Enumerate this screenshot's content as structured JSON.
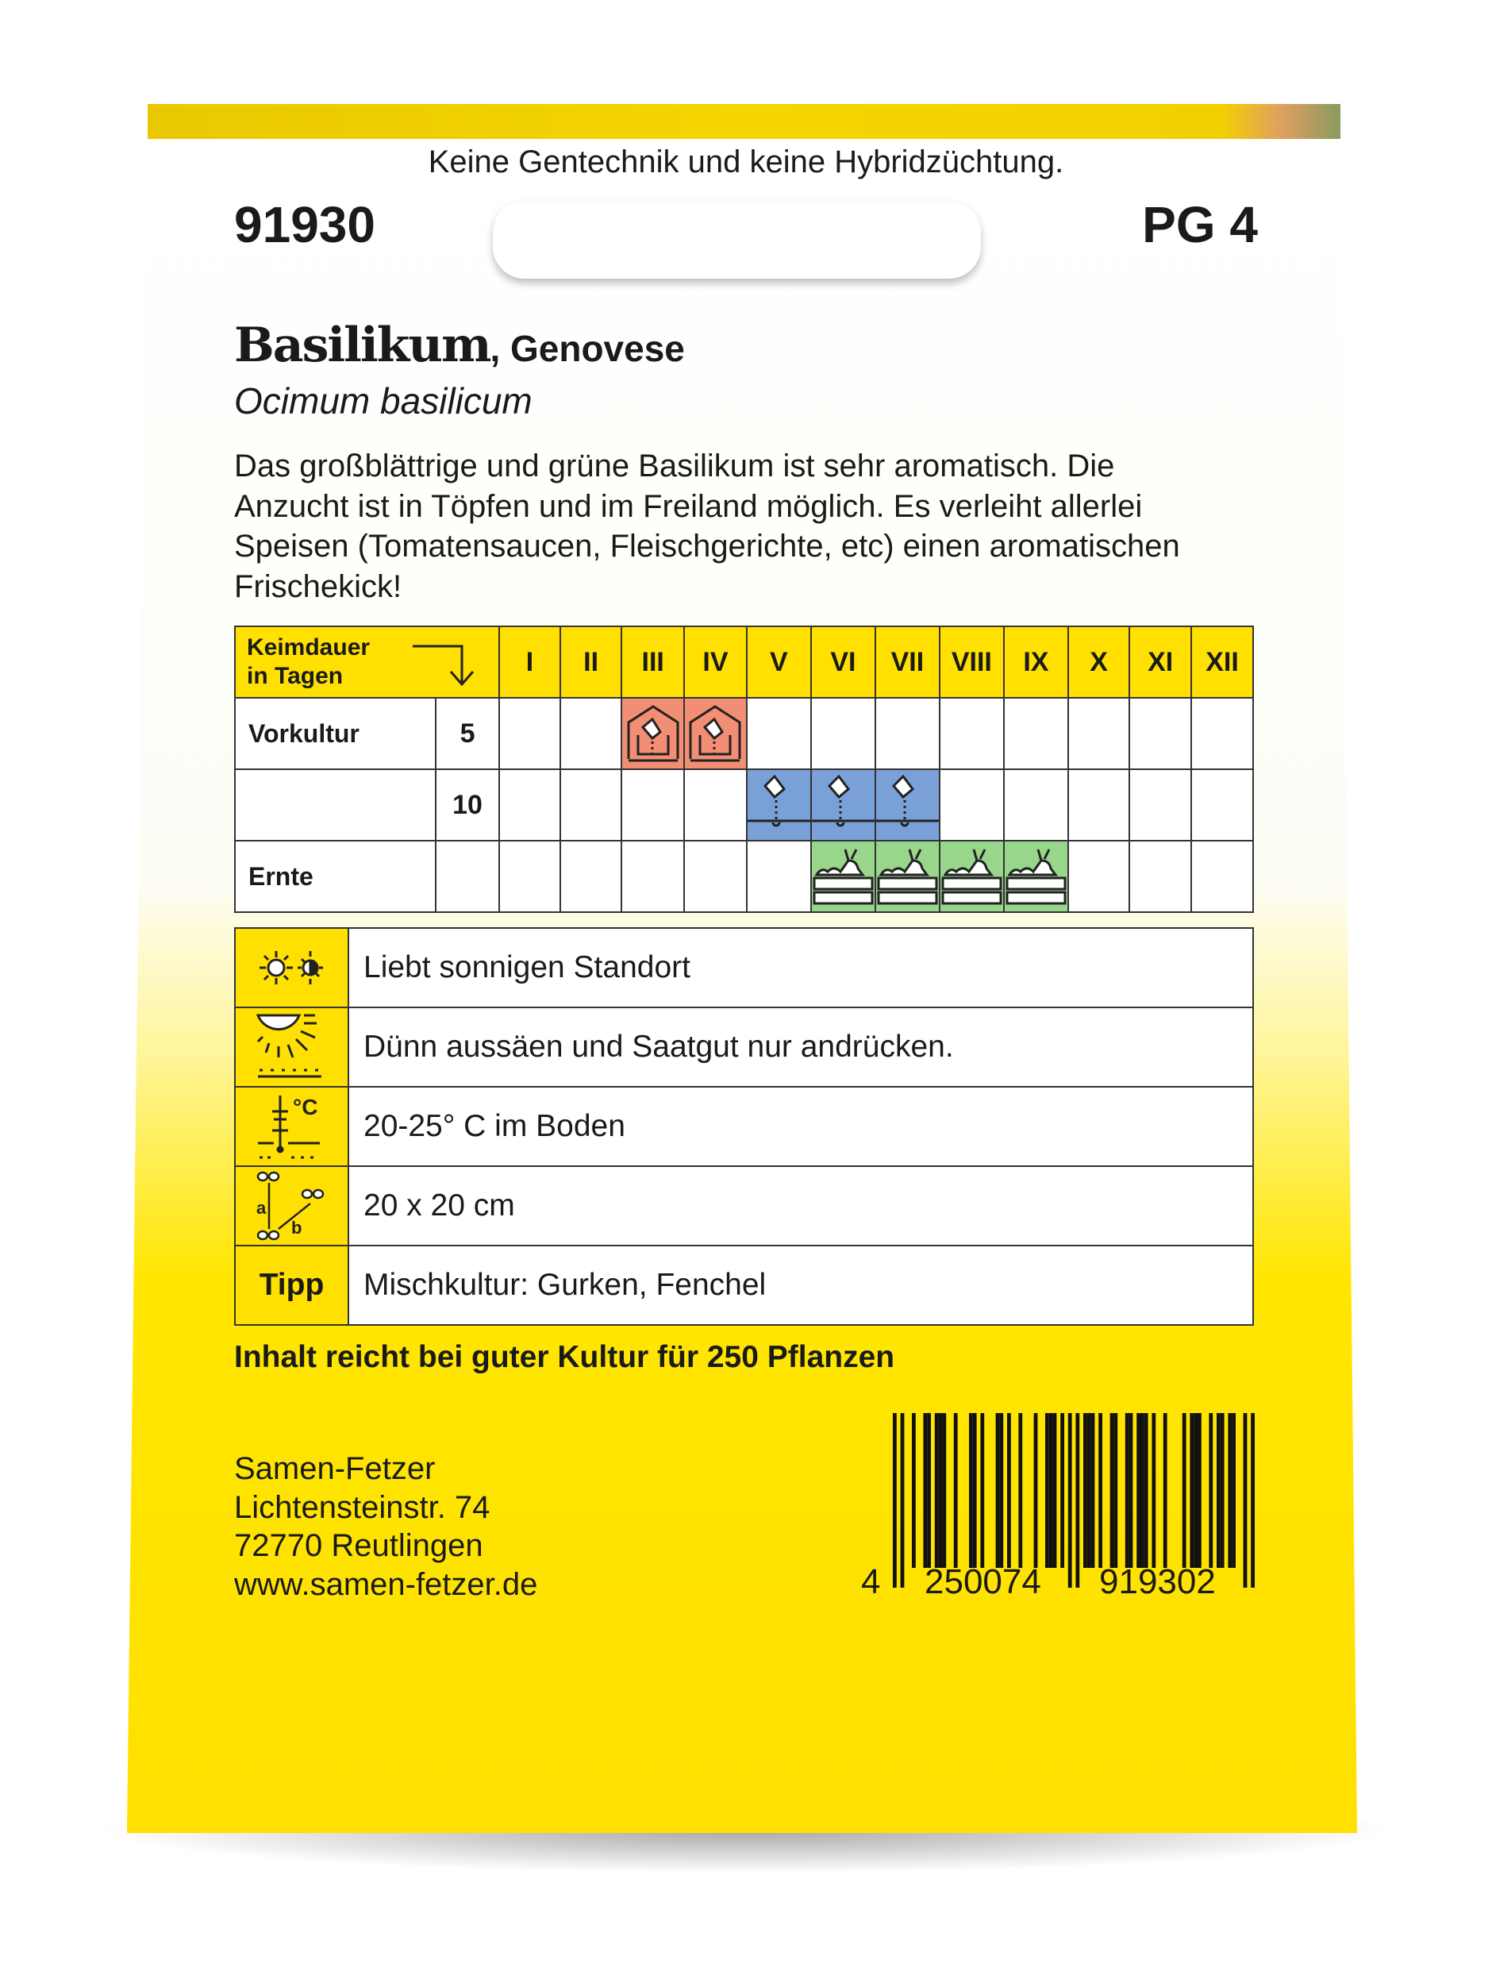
{
  "header": {
    "claim": "Keine Gentechnik und keine Hybridzüchtung.",
    "article_number": "91930",
    "price_group": "PG 4"
  },
  "product": {
    "name": "Basilikum",
    "variety": ", Genovese",
    "latin": "Ocimum basilicum",
    "description": [
      "Das großblättrige und grüne Basilikum ist sehr aromatisch. Die",
      "Anzucht ist in Töpfen und im Freiland möglich. Es verleiht allerlei",
      "Speisen (Tomatensaucen, Fleischgerichte, etc) einen aromatischen",
      "Frischekick!"
    ]
  },
  "schedule": {
    "header_label_1": "Keimdauer",
    "header_label_2": "in Tagen",
    "months": [
      "I",
      "II",
      "III",
      "IV",
      "V",
      "VI",
      "VII",
      "VIII",
      "IX",
      "X",
      "XI",
      "XII"
    ],
    "rows": [
      {
        "label": "Vorkultur",
        "days": "5",
        "icon": "greenhouse-sowing-icon",
        "color": "#f28e73",
        "months": [
          3,
          4
        ]
      },
      {
        "label": "",
        "days": "10",
        "icon": "direct-sowing-icon",
        "color": "#7aa0d8",
        "months": [
          5,
          6,
          7
        ]
      },
      {
        "label": "Ernte",
        "days": "",
        "icon": "harvest-crate-icon",
        "color": "#98d68c",
        "months": [
          6,
          7,
          8,
          9
        ]
      }
    ]
  },
  "info": [
    {
      "icon": "sun-halfshade-icon",
      "text": "Liebt sonnigen Standort"
    },
    {
      "icon": "light-germinator-icon",
      "text": "Dünn aussäen und Saatgut nur andrücken."
    },
    {
      "icon": "soil-thermometer-icon",
      "text": "20-25° C im Boden"
    },
    {
      "icon": "plant-spacing-icon",
      "text": "20 x 20 cm"
    },
    {
      "label": "Tipp",
      "text": "Mischkultur: Gurken, Fenchel"
    }
  ],
  "yield": "Inhalt reicht bei guter Kultur für 250 Pflanzen",
  "address": [
    "Samen-Fetzer",
    "Lichtensteinstr. 74",
    "72770 Reutlingen",
    "www.samen-fetzer.de"
  ],
  "barcode": {
    "first": "4",
    "left": "250074",
    "right": "919302"
  },
  "colors": {
    "yellow": "#ffe000",
    "sowing_indoor": "#f28e73",
    "sowing_outdoor": "#7aa0d8",
    "harvest": "#98d68c"
  }
}
